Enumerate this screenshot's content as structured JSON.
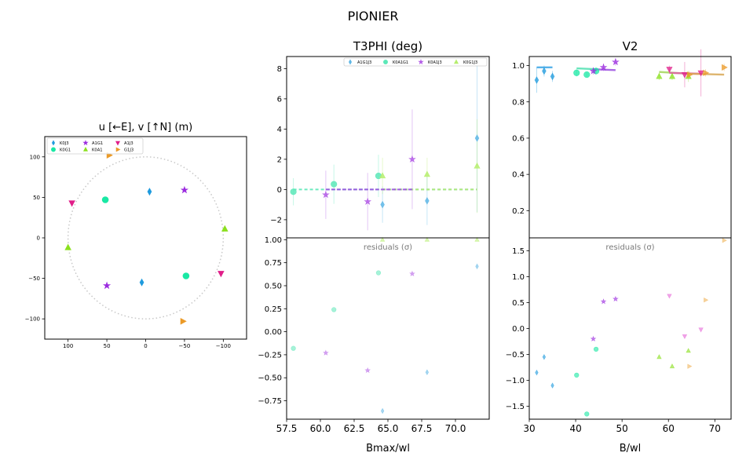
{
  "figure": {
    "suptitle": "PIONIER"
  },
  "colors": {
    "K0J3": "#1f9bde",
    "K0G1": "#19e8a4",
    "A1G1": "#9b2bdf",
    "K0A1": "#8be01e",
    "A1J3": "#e01e89",
    "G1J3": "#eb9a27",
    "A1G1J3": "#5fb7e6",
    "K0A1G1": "#5ce8b8",
    "K0A1J3": "#b35be6",
    "K0G1J3": "#b6ee6e",
    "g1j3_res": "#f0b55e",
    "a1j3_res": "#e66ad8"
  },
  "chart_data": [
    {
      "id": "uv",
      "type": "scatter",
      "title": "u [←E], v [↑N] (m)",
      "xlim": [
        130,
        -130
      ],
      "ylim": [
        -125,
        125
      ],
      "xticks": [
        "100",
        "50",
        "0",
        "−50",
        "−100"
      ],
      "xtick_values": [
        100,
        50,
        0,
        -50,
        -100
      ],
      "yticks": [
        "100",
        "50",
        "0",
        "−50",
        "−100"
      ],
      "ytick_values": [
        100,
        50,
        0,
        -50,
        -100
      ],
      "circle_radius": 100,
      "legend": [
        "K0J3",
        "K0G1",
        "A1G1",
        "K0A1",
        "A1J3",
        "G1J3"
      ],
      "series": [
        {
          "name": "K0J3",
          "marker": "thin_diamond",
          "points": [
            [
              -5,
              57
            ],
            [
              5,
              -55
            ]
          ]
        },
        {
          "name": "K0G1",
          "marker": "circle",
          "points": [
            [
              52,
              47
            ],
            [
              -52,
              -47
            ]
          ]
        },
        {
          "name": "A1G1",
          "marker": "star",
          "points": [
            [
              -50,
              59
            ],
            [
              50,
              -59
            ]
          ]
        },
        {
          "name": "K0A1",
          "marker": "triangle_up",
          "points": [
            [
              -102,
              11
            ],
            [
              100,
              -12
            ]
          ]
        },
        {
          "name": "A1J3",
          "marker": "triangle_down",
          "points": [
            [
              95,
              43
            ],
            [
              -97,
              -44
            ]
          ]
        },
        {
          "name": "G1J3",
          "marker": "triangle_right",
          "points": [
            [
              47,
              102
            ],
            [
              -48,
              -103
            ]
          ]
        }
      ]
    },
    {
      "id": "t3phi",
      "type": "scatter",
      "title": "T3PHI (deg)",
      "xlim": [
        57.5,
        72.5
      ],
      "ylim": [
        -3.2,
        8.8
      ],
      "yticks": [
        "−2",
        "0",
        "2",
        "4",
        "6",
        "8"
      ],
      "ytick_values": [
        -2,
        0,
        2,
        4,
        6,
        8
      ],
      "legend": [
        "A1G1J3",
        "K0A1G1",
        "K0A1J3",
        "K0G1J3"
      ],
      "series": [
        {
          "name": "A1G1J3",
          "marker": "thin_diamond",
          "points": [
            [
              64.6,
              -1.0,
              1.2
            ],
            [
              67.9,
              -0.75,
              1.6
            ],
            [
              71.6,
              3.4,
              4.9
            ]
          ]
        },
        {
          "name": "K0A1G1",
          "marker": "circle",
          "points": [
            [
              58.0,
              -0.15,
              0.9
            ],
            [
              61.0,
              0.35,
              1.3
            ],
            [
              64.3,
              0.9,
              1.4
            ]
          ]
        },
        {
          "name": "K0A1J3",
          "marker": "star",
          "points": [
            [
              60.4,
              -0.35,
              1.6
            ],
            [
              63.5,
              -0.8,
              1.9
            ],
            [
              66.8,
              2.0,
              3.3
            ]
          ]
        },
        {
          "name": "K0G1J3",
          "marker": "triangle_up",
          "points": [
            [
              64.6,
              0.9,
              1.2
            ],
            [
              67.9,
              1.0,
              1.1
            ],
            [
              71.6,
              1.55,
              3.1
            ]
          ]
        }
      ],
      "model_lines": [
        {
          "name": "A1G1J3",
          "color": "#5fb7e6"
        },
        {
          "name": "K0A1G1",
          "color": "#5ce8b8"
        },
        {
          "name": "K0G1J3",
          "color": "#b6ee6e"
        },
        {
          "name": "K0A1J3",
          "color": "#9b4fe0"
        }
      ]
    },
    {
      "id": "t3phi_res",
      "type": "scatter",
      "label": "residuals (σ)",
      "xlabel": "Bmax/wl",
      "xlim": [
        57.5,
        72.5
      ],
      "ylim": [
        -0.95,
        1.02
      ],
      "xticks": [
        "57.5",
        "60.0",
        "62.5",
        "65.0",
        "67.5",
        "70.0"
      ],
      "xtick_values": [
        57.5,
        60,
        62.5,
        65,
        67.5,
        70
      ],
      "yticks": [
        "−0.75",
        "−0.50",
        "−0.25",
        "0.00",
        "0.25",
        "0.50",
        "0.75",
        "1.00"
      ],
      "ytick_values": [
        -0.75,
        -0.5,
        -0.25,
        0,
        0.25,
        0.5,
        0.75,
        1.0
      ],
      "series": [
        {
          "name": "A1G1J3",
          "marker": "thin_diamond",
          "points": [
            [
              64.6,
              -0.86
            ],
            [
              67.9,
              -0.44
            ],
            [
              71.6,
              0.71
            ]
          ]
        },
        {
          "name": "K0A1G1",
          "marker": "circle",
          "points": [
            [
              58.0,
              -0.18
            ],
            [
              61.0,
              0.24
            ],
            [
              64.3,
              0.64
            ]
          ]
        },
        {
          "name": "K0A1J3",
          "marker": "star",
          "points": [
            [
              60.4,
              -0.23
            ],
            [
              63.5,
              -0.42
            ],
            [
              66.8,
              0.63
            ]
          ]
        },
        {
          "name": "K0G1J3",
          "marker": "triangle_up",
          "points": [
            [
              64.6,
              1.0
            ],
            [
              67.9,
              1.0
            ],
            [
              71.6,
              1.0
            ]
          ]
        }
      ]
    },
    {
      "id": "v2",
      "type": "scatter",
      "title": "V2",
      "xlim": [
        30,
        73.5
      ],
      "ylim": [
        0.05,
        1.05
      ],
      "yticks": [
        "0.2",
        "0.4",
        "0.6",
        "0.8",
        "1.0"
      ],
      "ytick_values": [
        0.2,
        0.4,
        0.6,
        0.8,
        1.0
      ],
      "series": [
        {
          "name": "K0J3",
          "marker": "thin_diamond",
          "points": [
            [
              31.6,
              0.92,
              0.07
            ],
            [
              33.2,
              0.97,
              0.03
            ],
            [
              35.0,
              0.94,
              0.03
            ]
          ]
        },
        {
          "name": "K0G1",
          "marker": "circle",
          "points": [
            [
              40.2,
              0.96,
              0.02
            ],
            [
              42.4,
              0.95,
              0.01
            ],
            [
              44.4,
              0.97,
              0.02
            ]
          ]
        },
        {
          "name": "A1G1",
          "marker": "star",
          "points": [
            [
              43.8,
              0.97,
              0.02
            ],
            [
              46.0,
              0.99,
              0.02
            ],
            [
              48.6,
              1.02,
              0.02
            ]
          ]
        },
        {
          "name": "K0A1",
          "marker": "triangle_up",
          "points": [
            [
              58.0,
              0.94,
              0.02
            ],
            [
              60.8,
              0.94,
              0.02
            ],
            [
              64.3,
              0.94,
              0.03
            ]
          ]
        },
        {
          "name": "A1J3",
          "marker": "triangle_down",
          "points": [
            [
              60.2,
              0.98,
              0.02
            ],
            [
              63.5,
              0.95,
              0.07
            ],
            [
              67.0,
              0.96,
              0.13
            ]
          ]
        },
        {
          "name": "G1J3",
          "marker": "triangle_right",
          "points": [
            [
              64.5,
              0.95,
              0.02
            ],
            [
              68.0,
              0.96,
              0.02
            ],
            [
              72.0,
              0.99,
              0.02
            ]
          ]
        }
      ],
      "model_lines": [
        {
          "name": "K0J3",
          "points": [
            [
              31.6,
              0.99
            ],
            [
              35.0,
              0.99
            ]
          ],
          "color": "#3aa5e6"
        },
        {
          "name": "K0G1",
          "points": [
            [
              40.2,
              0.985
            ],
            [
              44.4,
              0.98
            ]
          ],
          "color": "#4fe0b0"
        },
        {
          "name": "A1G1",
          "points": [
            [
              43.8,
              0.98
            ],
            [
              48.6,
              0.975
            ]
          ],
          "color": "#9b4fe0"
        },
        {
          "name": "K0A1",
          "points": [
            [
              58.0,
              0.965
            ],
            [
              64.3,
              0.955
            ]
          ],
          "color": "#a3d65a"
        },
        {
          "name": "A1J3",
          "points": [
            [
              60.2,
              0.96
            ],
            [
              67.0,
              0.955
            ]
          ],
          "color": "#e05aa6"
        },
        {
          "name": "G1J3",
          "points": [
            [
              64.5,
              0.955
            ],
            [
              72.0,
              0.95
            ]
          ],
          "color": "#d8a856"
        }
      ]
    },
    {
      "id": "v2_res",
      "type": "scatter",
      "label": "residuals (σ)",
      "xlabel": "B/wl",
      "xlim": [
        30,
        73.5
      ],
      "ylim": [
        -1.75,
        1.75
      ],
      "xticks": [
        "30",
        "40",
        "50",
        "60",
        "70"
      ],
      "xtick_values": [
        30,
        40,
        50,
        60,
        70
      ],
      "yticks": [
        "−1.5",
        "−1.0",
        "−0.5",
        "0.0",
        "0.5",
        "1.0",
        "1.5"
      ],
      "ytick_values": [
        -1.5,
        -1.0,
        -0.5,
        0,
        0.5,
        1.0,
        1.5
      ],
      "series": [
        {
          "name": "K0J3",
          "marker": "thin_diamond",
          "points": [
            [
              31.6,
              -0.85
            ],
            [
              33.2,
              -0.55
            ],
            [
              35.0,
              -1.1
            ]
          ]
        },
        {
          "name": "K0G1",
          "marker": "circle",
          "points": [
            [
              40.2,
              -0.9
            ],
            [
              42.4,
              -1.65
            ],
            [
              44.4,
              -0.4
            ]
          ]
        },
        {
          "name": "A1G1",
          "marker": "star",
          "points": [
            [
              43.8,
              -0.2
            ],
            [
              46.0,
              0.52
            ],
            [
              48.6,
              0.57
            ]
          ]
        },
        {
          "name": "K0A1",
          "marker": "triangle_up",
          "points": [
            [
              58.0,
              -0.55
            ],
            [
              60.8,
              -0.73
            ],
            [
              64.3,
              -0.43
            ]
          ]
        },
        {
          "name": "A1J3",
          "marker": "triangle_down",
          "points": [
            [
              60.2,
              0.63
            ],
            [
              63.5,
              -0.15
            ],
            [
              67.0,
              -0.02
            ]
          ]
        },
        {
          "name": "G1J3",
          "marker": "triangle_right",
          "points": [
            [
              64.5,
              -0.73
            ],
            [
              68.0,
              0.55
            ],
            [
              72.0,
              1.7
            ]
          ]
        }
      ]
    }
  ]
}
